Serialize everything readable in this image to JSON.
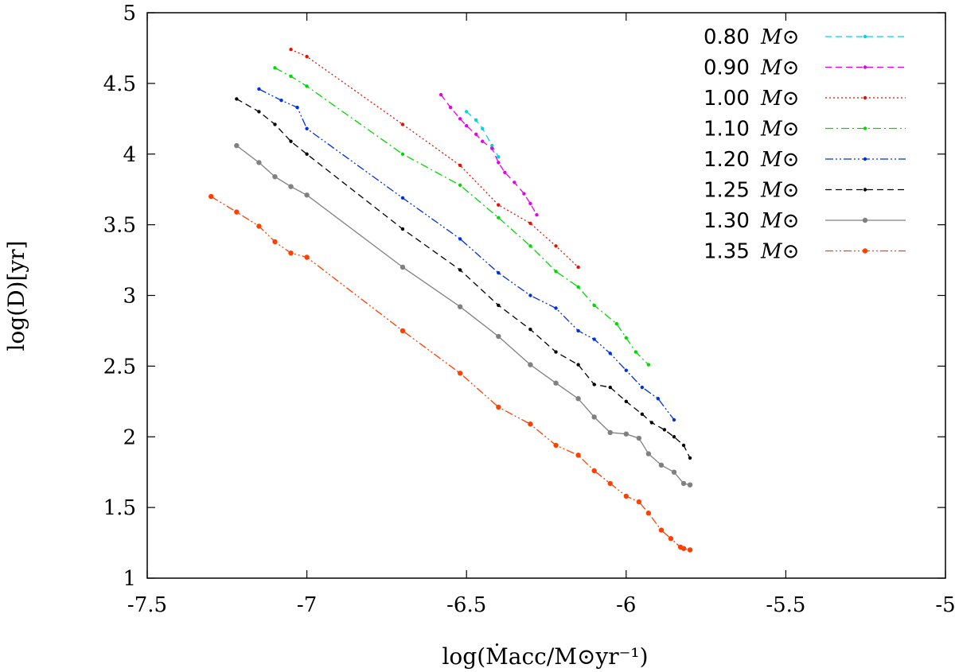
{
  "chart_data": {
    "type": "line",
    "xlabel": "log(Ṁacc/M⊙yr⁻¹)",
    "ylabel": "log(D)[yr]",
    "xlim": [
      -7.5,
      -5
    ],
    "ylim": [
      1,
      5
    ],
    "x_ticks": [
      "-7.5",
      "-7",
      "-6.5",
      "-6",
      "-5.5",
      "-5"
    ],
    "y_ticks": [
      "1",
      "1.5",
      "2",
      "2.5",
      "3",
      "3.5",
      "4",
      "4.5",
      "5"
    ],
    "grid": false,
    "legend_position": "top-right",
    "legend_unit": "M⊙",
    "series": [
      {
        "name": "0.80",
        "color": "#00d5e8",
        "dash": "dashed",
        "x": [
          -6.5,
          -6.47,
          -6.45,
          -6.42,
          -6.4
        ],
        "y": [
          4.3,
          4.24,
          4.18,
          4.06,
          3.98
        ]
      },
      {
        "name": "0.90",
        "color": "#e800e8",
        "dash": "dashed",
        "x": [
          -6.58,
          -6.55,
          -6.52,
          -6.5,
          -6.47,
          -6.45,
          -6.42,
          -6.4,
          -6.38,
          -6.35,
          -6.32,
          -6.3,
          -6.28
        ],
        "y": [
          4.42,
          4.33,
          4.25,
          4.2,
          4.14,
          4.09,
          4.04,
          3.94,
          3.87,
          3.8,
          3.72,
          3.65,
          3.57
        ]
      },
      {
        "name": "1.00",
        "color": "#e81000",
        "dash": "dotted",
        "x": [
          -7.05,
          -7.0,
          -6.7,
          -6.52,
          -6.4,
          -6.3,
          -6.22,
          -6.15
        ],
        "y": [
          4.74,
          4.69,
          4.21,
          3.92,
          3.64,
          3.51,
          3.35,
          3.2
        ]
      },
      {
        "name": "1.10",
        "color": "#00d800",
        "dash": "dashdot",
        "x": [
          -7.1,
          -7.05,
          -7.0,
          -6.7,
          -6.52,
          -6.4,
          -6.3,
          -6.22,
          -6.15,
          -6.1,
          -6.03,
          -6.0,
          -5.97,
          -5.93
        ],
        "y": [
          4.61,
          4.55,
          4.48,
          4.0,
          3.78,
          3.55,
          3.35,
          3.17,
          3.06,
          2.93,
          2.8,
          2.7,
          2.6,
          2.51
        ]
      },
      {
        "name": "1.20",
        "color": "#0030e0",
        "dash": "dashdotdot",
        "x": [
          -7.15,
          -7.08,
          -7.03,
          -7.0,
          -6.7,
          -6.52,
          -6.4,
          -6.3,
          -6.22,
          -6.15,
          -6.1,
          -6.05,
          -6.0,
          -5.95,
          -5.9,
          -5.85
        ],
        "y": [
          4.46,
          4.38,
          4.33,
          4.18,
          3.69,
          3.4,
          3.16,
          3.0,
          2.91,
          2.75,
          2.69,
          2.59,
          2.47,
          2.35,
          2.27,
          2.12
        ]
      },
      {
        "name": "1.25",
        "color": "#000000",
        "dash": "dashed",
        "x": [
          -7.22,
          -7.15,
          -7.1,
          -7.05,
          -7.0,
          -6.7,
          -6.52,
          -6.4,
          -6.3,
          -6.22,
          -6.15,
          -6.1,
          -6.05,
          -6.0,
          -5.95,
          -5.92,
          -5.88,
          -5.85,
          -5.82,
          -5.8
        ],
        "y": [
          4.39,
          4.3,
          4.21,
          4.09,
          4.0,
          3.47,
          3.18,
          2.93,
          2.76,
          2.6,
          2.51,
          2.37,
          2.35,
          2.25,
          2.16,
          2.1,
          2.05,
          2.0,
          1.94,
          1.85
        ]
      },
      {
        "name": "1.30",
        "color": "#808080",
        "dash": "solid",
        "x": [
          -7.22,
          -7.15,
          -7.1,
          -7.05,
          -7.0,
          -6.7,
          -6.52,
          -6.4,
          -6.3,
          -6.22,
          -6.15,
          -6.1,
          -6.05,
          -6.0,
          -5.96,
          -5.93,
          -5.89,
          -5.85,
          -5.82,
          -5.8
        ],
        "y": [
          4.06,
          3.94,
          3.84,
          3.77,
          3.71,
          3.2,
          2.92,
          2.71,
          2.51,
          2.38,
          2.27,
          2.14,
          2.03,
          2.02,
          1.99,
          1.88,
          1.8,
          1.75,
          1.67,
          1.66
        ]
      },
      {
        "name": "1.35",
        "color": "#ff4000",
        "dash": "dashdotdot",
        "x": [
          -7.3,
          -7.22,
          -7.15,
          -7.1,
          -7.05,
          -7.0,
          -6.7,
          -6.52,
          -6.4,
          -6.3,
          -6.22,
          -6.15,
          -6.1,
          -6.05,
          -6.0,
          -5.96,
          -5.93,
          -5.89,
          -5.86,
          -5.83,
          -5.82,
          -5.8
        ],
        "y": [
          3.7,
          3.59,
          3.49,
          3.38,
          3.3,
          3.27,
          2.75,
          2.45,
          2.21,
          2.09,
          1.94,
          1.87,
          1.76,
          1.67,
          1.58,
          1.54,
          1.46,
          1.34,
          1.28,
          1.22,
          1.21,
          1.2
        ]
      }
    ]
  }
}
